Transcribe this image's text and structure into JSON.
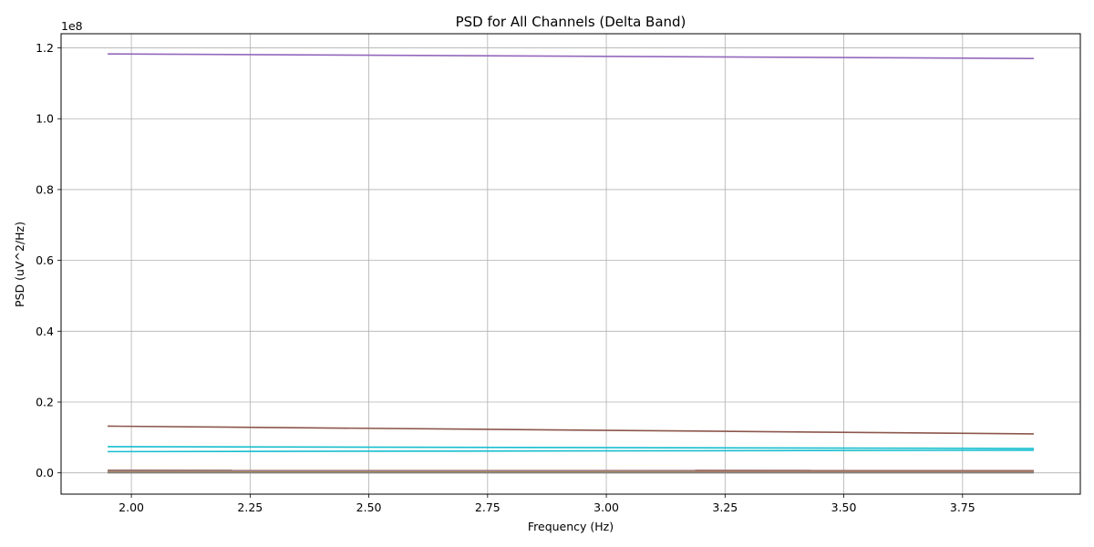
{
  "chart_data": {
    "type": "line",
    "title": "PSD for All Channels (Delta Band)",
    "xlabel": "Frequency (Hz)",
    "ylabel": "PSD (uV^2/Hz)",
    "y_offset_text": "1e8",
    "y_scale": 100000000,
    "xlim": [
      1.852,
      3.998
    ],
    "ylim": [
      -6000000,
      124000000
    ],
    "x_ticks": [
      2.0,
      2.25,
      2.5,
      2.75,
      3.0,
      3.25,
      3.5,
      3.75
    ],
    "x_tick_labels": [
      "2.00",
      "2.25",
      "2.50",
      "2.75",
      "3.00",
      "3.25",
      "3.50",
      "3.75"
    ],
    "y_ticks": [
      0,
      20000000,
      40000000,
      60000000,
      80000000,
      100000000,
      120000000
    ],
    "y_tick_labels": [
      "0.0",
      "0.2",
      "0.4",
      "0.6",
      "0.8",
      "1.0",
      "1.2"
    ],
    "grid": true,
    "legend": "none",
    "x": [
      1.95,
      3.9
    ],
    "series": [
      {
        "color": "#9467bd",
        "values": [
          118300000,
          117000000
        ]
      },
      {
        "color": "#8c564b",
        "values": [
          13200000,
          11000000
        ]
      },
      {
        "color": "#17becf",
        "values": [
          7400000,
          6900000
        ]
      },
      {
        "color": "#17becf",
        "values": [
          6000000,
          6400000
        ]
      },
      {
        "color": "#8c564b",
        "values": [
          700000,
          650000
        ]
      },
      {
        "color": "#7f7f7f",
        "values": [
          500000,
          450000
        ]
      },
      {
        "color": "#e377c2",
        "values": [
          300000,
          280000
        ]
      },
      {
        "color": "#bcbd22",
        "values": [
          200000,
          190000
        ]
      },
      {
        "color": "#8c564b",
        "values": [
          100000,
          100000
        ]
      },
      {
        "color": "#7f7f7f",
        "values": [
          50000,
          50000
        ]
      }
    ]
  }
}
